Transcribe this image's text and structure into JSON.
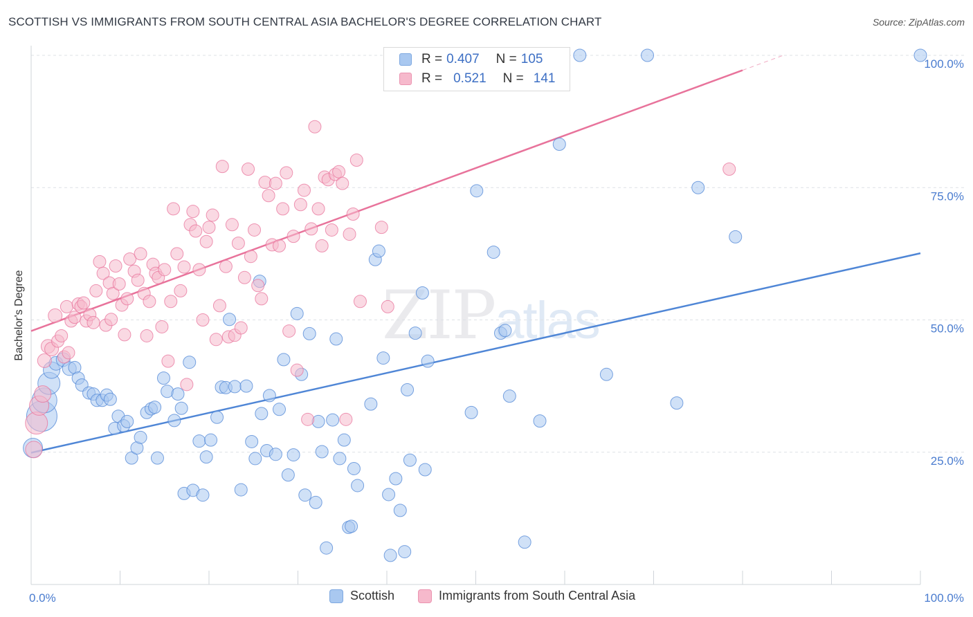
{
  "title": "SCOTTISH VS IMMIGRANTS FROM SOUTH CENTRAL ASIA BACHELOR'S DEGREE CORRELATION CHART",
  "source": "Source: ZipAtlas.com",
  "watermark": {
    "zip": "ZIP",
    "atlas": "atlas"
  },
  "legend": {
    "rows": [
      {
        "r_label": "R =",
        "r_value": "0.407",
        "n_label": "N =",
        "n_value": "105",
        "color": "#a9c8f0"
      },
      {
        "r_label": "R =",
        "r_value": "0.521",
        "n_label": "N =",
        "n_value": "141",
        "color": "#f6b9cc"
      }
    ]
  },
  "bottom_legend": [
    {
      "label": "Scottish",
      "color": "#a9c8f0"
    },
    {
      "label": "Immigrants from South Central Asia",
      "color": "#f6b9cc"
    }
  ],
  "chart_data": {
    "type": "scatter",
    "ylabel": "Bachelor's Degree",
    "xlim": [
      0,
      100
    ],
    "ylim": [
      0,
      100
    ],
    "x_tick_labels": [
      "0.0%",
      "100.0%"
    ],
    "y_tick_labels": [
      "25.0%",
      "50.0%",
      "75.0%",
      "100.0%"
    ],
    "y_ticks": [
      25,
      50,
      75,
      100
    ],
    "grid": "horizontal dashed",
    "series": [
      {
        "name": "Scottish",
        "color": "#4f86d6",
        "fill": "#a9c8f0",
        "trend": {
          "x0": 0,
          "y0": 24.9,
          "x1": 100,
          "y1": 62.6,
          "dashed_from": null
        },
        "points": [
          [
            0.2,
            25.8,
            14
          ],
          [
            1.2,
            31.8,
            22
          ],
          [
            1.5,
            34.8,
            18
          ],
          [
            2.0,
            38.0,
            16
          ],
          [
            2.3,
            40.5,
            12
          ],
          [
            2.8,
            41.8,
            10
          ],
          [
            3.6,
            42.5,
            10
          ],
          [
            4.3,
            40.8,
            10
          ],
          [
            4.9,
            41.0,
            9
          ],
          [
            5.3,
            39.0,
            9
          ],
          [
            5.7,
            37.7,
            9
          ],
          [
            6.5,
            36.2,
            9
          ],
          [
            7.0,
            36.0,
            9
          ],
          [
            7.4,
            34.8,
            9
          ],
          [
            8.0,
            34.8,
            9
          ],
          [
            8.5,
            35.8,
            9
          ],
          [
            8.9,
            35.0,
            9
          ],
          [
            9.4,
            29.5,
            9
          ],
          [
            9.8,
            31.8,
            9
          ],
          [
            10.4,
            30.0,
            9
          ],
          [
            10.8,
            30.8,
            9
          ],
          [
            11.3,
            23.9,
            9
          ],
          [
            11.9,
            25.8,
            9
          ],
          [
            12.3,
            27.8,
            9
          ],
          [
            13.0,
            32.5,
            9
          ],
          [
            13.5,
            33.2,
            9
          ],
          [
            13.9,
            33.5,
            9
          ],
          [
            14.2,
            23.9,
            9
          ],
          [
            14.9,
            39.0,
            9
          ],
          [
            15.3,
            36.5,
            9
          ],
          [
            16.1,
            31.0,
            9
          ],
          [
            16.5,
            36.0,
            9
          ],
          [
            16.9,
            33.3,
            9
          ],
          [
            17.2,
            17.2,
            9
          ],
          [
            17.8,
            42.0,
            9
          ],
          [
            18.2,
            17.8,
            9
          ],
          [
            18.9,
            27.1,
            9
          ],
          [
            19.3,
            16.9,
            9
          ],
          [
            19.7,
            24.1,
            9
          ],
          [
            20.2,
            27.3,
            9
          ],
          [
            20.9,
            31.6,
            9
          ],
          [
            21.4,
            37.3,
            9
          ],
          [
            21.9,
            37.2,
            9
          ],
          [
            22.3,
            50.1,
            9
          ],
          [
            22.9,
            37.4,
            9
          ],
          [
            23.6,
            17.9,
            9
          ],
          [
            24.2,
            37.5,
            9
          ],
          [
            24.8,
            27.0,
            9
          ],
          [
            25.2,
            23.8,
            9
          ],
          [
            25.7,
            57.3,
            9
          ],
          [
            25.9,
            32.3,
            9
          ],
          [
            26.5,
            25.3,
            9
          ],
          [
            26.8,
            35.7,
            9
          ],
          [
            27.5,
            24.6,
            9
          ],
          [
            27.9,
            33.1,
            9
          ],
          [
            28.4,
            42.5,
            9
          ],
          [
            28.9,
            20.7,
            9
          ],
          [
            29.5,
            24.5,
            9
          ],
          [
            29.9,
            51.2,
            9
          ],
          [
            30.4,
            39.7,
            9
          ],
          [
            30.8,
            16.9,
            9
          ],
          [
            31.3,
            47.4,
            9
          ],
          [
            32.0,
            15.5,
            9
          ],
          [
            32.3,
            30.8,
            9
          ],
          [
            32.7,
            25.1,
            9
          ],
          [
            33.2,
            6.9,
            9
          ],
          [
            33.9,
            31.1,
            9
          ],
          [
            34.3,
            46.4,
            9
          ],
          [
            34.7,
            23.8,
            9
          ],
          [
            35.2,
            27.3,
            9
          ],
          [
            35.7,
            10.8,
            9
          ],
          [
            36.0,
            11.0,
            9
          ],
          [
            36.3,
            21.9,
            9
          ],
          [
            36.7,
            18.7,
            9
          ],
          [
            38.2,
            34.1,
            9
          ],
          [
            38.7,
            61.4,
            9
          ],
          [
            39.1,
            63.0,
            9
          ],
          [
            39.6,
            42.8,
            9
          ],
          [
            40.2,
            17.0,
            9
          ],
          [
            40.4,
            5.5,
            9
          ],
          [
            41.0,
            20.0,
            9
          ],
          [
            41.5,
            14.0,
            9
          ],
          [
            42.0,
            6.2,
            9
          ],
          [
            42.3,
            36.8,
            9
          ],
          [
            42.6,
            23.5,
            9
          ],
          [
            43.2,
            47.5,
            9
          ],
          [
            44.0,
            55.1,
            9
          ],
          [
            44.3,
            21.7,
            9
          ],
          [
            44.6,
            42.2,
            9
          ],
          [
            49.5,
            32.5,
            9
          ],
          [
            50.1,
            74.4,
            9
          ],
          [
            52.0,
            62.8,
            9
          ],
          [
            52.8,
            47.5,
            9
          ],
          [
            53.3,
            48.0,
            9
          ],
          [
            53.8,
            35.6,
            9
          ],
          [
            55.5,
            8.0,
            9
          ],
          [
            57.2,
            30.9,
            9
          ],
          [
            59.4,
            83.2,
            9
          ],
          [
            61.7,
            100.0,
            9
          ],
          [
            64.7,
            39.7,
            9
          ],
          [
            69.3,
            100.0,
            9
          ],
          [
            72.6,
            34.3,
            9
          ],
          [
            75.0,
            75.0,
            9
          ],
          [
            79.2,
            65.7,
            9
          ],
          [
            100.0,
            100.0,
            9
          ]
        ]
      },
      {
        "name": "Immigrants from South Central Asia",
        "color": "#e8739b",
        "fill": "#f6b9cc",
        "trend": {
          "x0": 0,
          "y0": 47.9,
          "x1": 100,
          "y1": 109.5,
          "solid_until": 80
        },
        "points": [
          [
            0.3,
            25.5,
            12
          ],
          [
            0.6,
            30.5,
            16
          ],
          [
            0.9,
            33.8,
            14
          ],
          [
            1.3,
            36.0,
            12
          ],
          [
            1.5,
            42.3,
            10
          ],
          [
            1.9,
            45.0,
            10
          ],
          [
            2.3,
            44.5,
            10
          ],
          [
            2.7,
            50.8,
            10
          ],
          [
            3.0,
            46.0,
            9
          ],
          [
            3.4,
            47.0,
            9
          ],
          [
            3.7,
            43.0,
            9
          ],
          [
            4.0,
            52.5,
            9
          ],
          [
            4.2,
            43.8,
            9
          ],
          [
            4.5,
            49.8,
            9
          ],
          [
            4.9,
            50.5,
            9
          ],
          [
            5.3,
            53.0,
            9
          ],
          [
            5.6,
            52.5,
            9
          ],
          [
            5.9,
            53.2,
            9
          ],
          [
            6.2,
            49.8,
            9
          ],
          [
            6.6,
            51.0,
            9
          ],
          [
            7.0,
            49.5,
            9
          ],
          [
            7.3,
            55.5,
            9
          ],
          [
            7.7,
            61.0,
            9
          ],
          [
            8.1,
            58.8,
            9
          ],
          [
            8.4,
            49.0,
            9
          ],
          [
            8.8,
            57.0,
            9
          ],
          [
            9.0,
            50.1,
            9
          ],
          [
            9.2,
            55.0,
            9
          ],
          [
            9.5,
            60.2,
            9
          ],
          [
            9.9,
            56.8,
            9
          ],
          [
            10.2,
            52.8,
            9
          ],
          [
            10.5,
            47.2,
            9
          ],
          [
            10.8,
            54.0,
            9
          ],
          [
            11.1,
            61.5,
            9
          ],
          [
            11.6,
            59.2,
            9
          ],
          [
            12.0,
            57.5,
            9
          ],
          [
            12.3,
            62.5,
            9
          ],
          [
            12.7,
            55.0,
            9
          ],
          [
            13.0,
            47.0,
            9
          ],
          [
            13.3,
            53.5,
            9
          ],
          [
            13.7,
            60.5,
            9
          ],
          [
            14.0,
            58.8,
            9
          ],
          [
            14.3,
            58.0,
            9
          ],
          [
            14.7,
            48.7,
            9
          ],
          [
            15.0,
            59.5,
            9
          ],
          [
            15.4,
            42.2,
            9
          ],
          [
            15.7,
            53.5,
            9
          ],
          [
            16.0,
            71.0,
            9
          ],
          [
            16.4,
            62.5,
            9
          ],
          [
            16.8,
            55.5,
            9
          ],
          [
            17.2,
            60.0,
            9
          ],
          [
            17.5,
            37.8,
            9
          ],
          [
            17.9,
            68.0,
            9
          ],
          [
            18.2,
            70.5,
            9
          ],
          [
            18.5,
            66.8,
            9
          ],
          [
            18.9,
            59.5,
            9
          ],
          [
            19.3,
            50.0,
            9
          ],
          [
            19.7,
            64.8,
            9
          ],
          [
            20.0,
            67.5,
            9
          ],
          [
            20.4,
            69.8,
            9
          ],
          [
            20.8,
            46.3,
            9
          ],
          [
            21.2,
            52.7,
            9
          ],
          [
            21.5,
            79.0,
            9
          ],
          [
            21.9,
            60.1,
            9
          ],
          [
            22.2,
            46.8,
            9
          ],
          [
            22.6,
            68.0,
            9
          ],
          [
            22.9,
            47.1,
            9
          ],
          [
            23.3,
            64.5,
            9
          ],
          [
            23.6,
            48.5,
            9
          ],
          [
            24.0,
            58.0,
            9
          ],
          [
            24.4,
            78.5,
            9
          ],
          [
            24.7,
            62.0,
            9
          ],
          [
            25.1,
            67.0,
            9
          ],
          [
            25.5,
            56.5,
            9
          ],
          [
            25.9,
            54.0,
            9
          ],
          [
            26.3,
            76.0,
            9
          ],
          [
            26.7,
            73.5,
            9
          ],
          [
            27.1,
            64.2,
            9
          ],
          [
            27.5,
            75.8,
            9
          ],
          [
            27.9,
            64.0,
            9
          ],
          [
            28.3,
            71.0,
            9
          ],
          [
            28.7,
            77.8,
            9
          ],
          [
            29.0,
            47.9,
            9
          ],
          [
            29.5,
            65.8,
            9
          ],
          [
            29.9,
            40.5,
            9
          ],
          [
            30.3,
            71.8,
            9
          ],
          [
            30.7,
            74.5,
            9
          ],
          [
            31.1,
            31.2,
            9
          ],
          [
            31.5,
            67.2,
            9
          ],
          [
            31.9,
            86.5,
            9
          ],
          [
            32.3,
            71.0,
            9
          ],
          [
            32.7,
            64.0,
            9
          ],
          [
            33.0,
            77.0,
            9
          ],
          [
            33.4,
            76.5,
            9
          ],
          [
            33.8,
            67.0,
            9
          ],
          [
            34.2,
            77.5,
            9
          ],
          [
            34.6,
            78.0,
            9
          ],
          [
            35.0,
            75.8,
            9
          ],
          [
            35.4,
            31.2,
            9
          ],
          [
            35.8,
            66.2,
            9
          ],
          [
            36.2,
            70.0,
            9
          ],
          [
            36.6,
            80.2,
            9
          ],
          [
            37.0,
            53.5,
            9
          ],
          [
            39.4,
            67.5,
            9
          ],
          [
            40.1,
            52.5,
            9
          ],
          [
            78.5,
            78.5,
            9
          ]
        ]
      }
    ]
  }
}
